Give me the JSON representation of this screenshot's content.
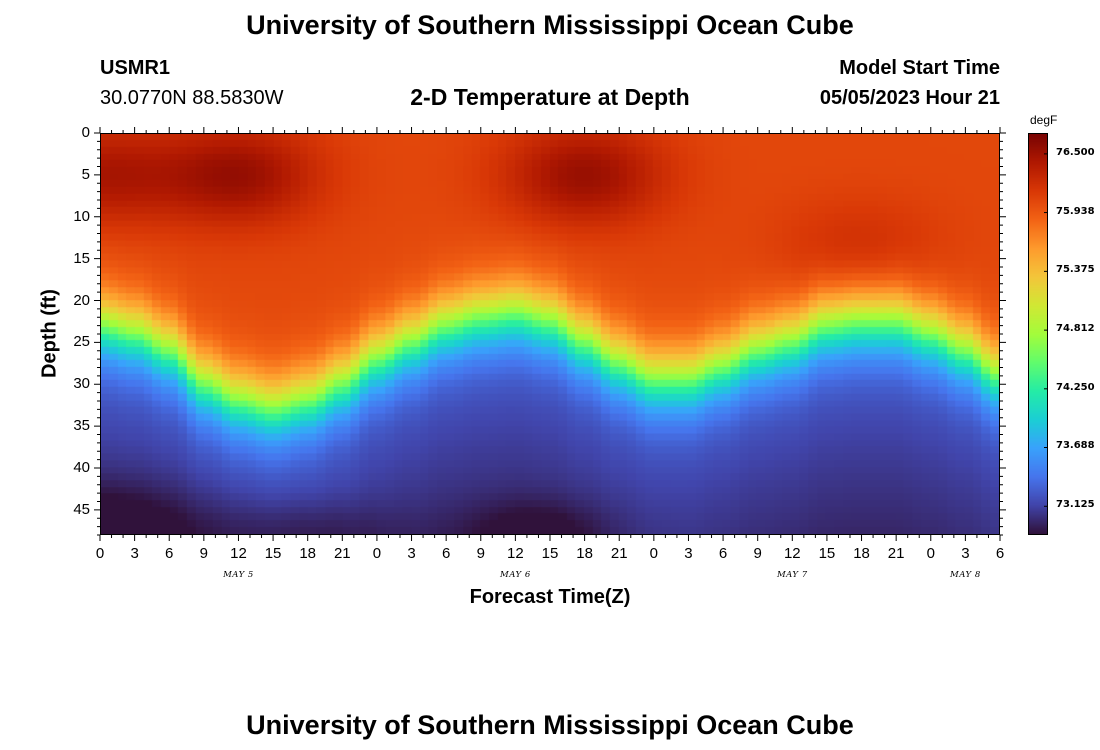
{
  "header": {
    "title": "University of Southern Mississippi Ocean Cube",
    "station_id": "USMR1",
    "coordinates": "30.0770N  88.5830W",
    "plot_title": "2-D Temperature at Depth",
    "model_label": "Model Start Time",
    "model_time": "05/05/2023 Hour 21"
  },
  "footer": {
    "title": "University of Southern Mississippi Ocean Cube"
  },
  "colors": {
    "scale": [
      "#30123b",
      "#4145ab",
      "#4675ed",
      "#39a2fc",
      "#1bcfd4",
      "#24eca6",
      "#61fc6c",
      "#a4fc3b",
      "#d1e834",
      "#f3c63a",
      "#fe9b2d",
      "#f36315",
      "#d93806",
      "#b11901",
      "#7a0402"
    ]
  },
  "chart_data": {
    "type": "heatmap",
    "title": "2-D Temperature at Depth",
    "xlabel": "Forecast Time(Z)",
    "ylabel": "Depth (ft)",
    "x_tick_labels": [
      "0",
      "3",
      "6",
      "9",
      "12",
      "15",
      "18",
      "21",
      "0",
      "3",
      "6",
      "9",
      "12",
      "15",
      "18",
      "21",
      "0",
      "3",
      "6",
      "9",
      "12",
      "15",
      "18",
      "21",
      "0",
      "3",
      "6"
    ],
    "x_range_hours": [
      0,
      78
    ],
    "date_labels": [
      {
        "label": "MAY 5",
        "hour": 12
      },
      {
        "label": "MAY 6",
        "hour": 36
      },
      {
        "label": "MAY 7",
        "hour": 60
      },
      {
        "label": "MAY 8",
        "hour": 75
      }
    ],
    "y_ticks": [
      0,
      5,
      10,
      15,
      20,
      25,
      30,
      35,
      40,
      45
    ],
    "ylim": [
      0,
      48
    ],
    "colorbar": {
      "unit": "degF",
      "ticks": [
        "76.500",
        "75.938",
        "75.375",
        "74.812",
        "74.250",
        "73.688",
        "73.125"
      ],
      "tick_values": [
        76.5,
        75.938,
        75.375,
        74.812,
        74.25,
        73.688,
        73.125
      ],
      "range": [
        72.85,
        76.7
      ]
    },
    "thermocline_depth": {
      "hours": [
        0,
        3,
        6,
        9,
        12,
        15,
        18,
        21,
        24,
        27,
        30,
        33,
        36,
        39,
        42,
        45,
        48,
        51,
        54,
        57,
        60,
        63,
        66,
        69,
        72,
        75,
        78
      ],
      "depth_ft": [
        23,
        24,
        26,
        30,
        32,
        33,
        32,
        30,
        27,
        25,
        23,
        22,
        21.5,
        22.5,
        25,
        27.5,
        29.5,
        29.5,
        28,
        26,
        25,
        23,
        22.5,
        22.5,
        24,
        26,
        29
      ]
    },
    "surface_maxima": [
      {
        "hour": 0,
        "depth_ft": 5,
        "value": 76.45
      },
      {
        "hour": 12,
        "depth_ft": 5,
        "value": 76.55
      },
      {
        "hour": 42,
        "depth_ft": 5,
        "value": 76.55
      },
      {
        "hour": 66,
        "depth_ft": 14,
        "value": 76.25
      }
    ],
    "bottom_minimum": {
      "hour": 0,
      "depth_ft": 48,
      "value": 72.9
    }
  }
}
